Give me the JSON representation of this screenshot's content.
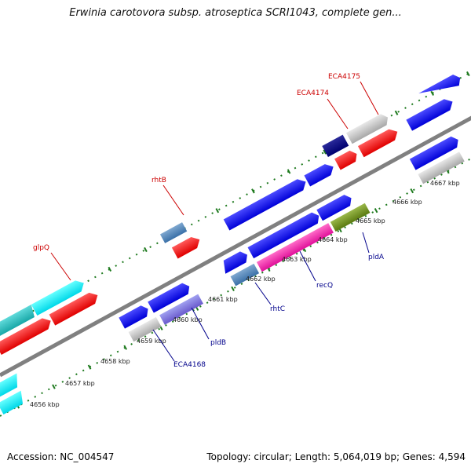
{
  "title": "Erwinia carotovora subsp. atroseptica SCRI1043, complete gen...",
  "accession": "Accession: NC_004547",
  "summary": "Topology: circular; Length: 5,064,019 bp; Genes: 4,594",
  "colors": {
    "backbone": "#808080",
    "tick": "#1e7a1e",
    "label_top": "#cc0000",
    "label_bottom": "#00008b"
  },
  "kbp_ticks": [
    "4656 kbp",
    "4657 kbp",
    "4658 kbp",
    "4659 kbp",
    "4660 kbp",
    "4661 kbp",
    "4662 kbp",
    "4663 kbp",
    "4664 kbp",
    "4665 kbp",
    "4666 kbp",
    "4667 kbp"
  ],
  "gene_labels": [
    "glpQ",
    "rhtB",
    "ECA4174",
    "ECA4175",
    "ECA4168",
    "pldB",
    "rhtC",
    "recQ",
    "pldA"
  ]
}
